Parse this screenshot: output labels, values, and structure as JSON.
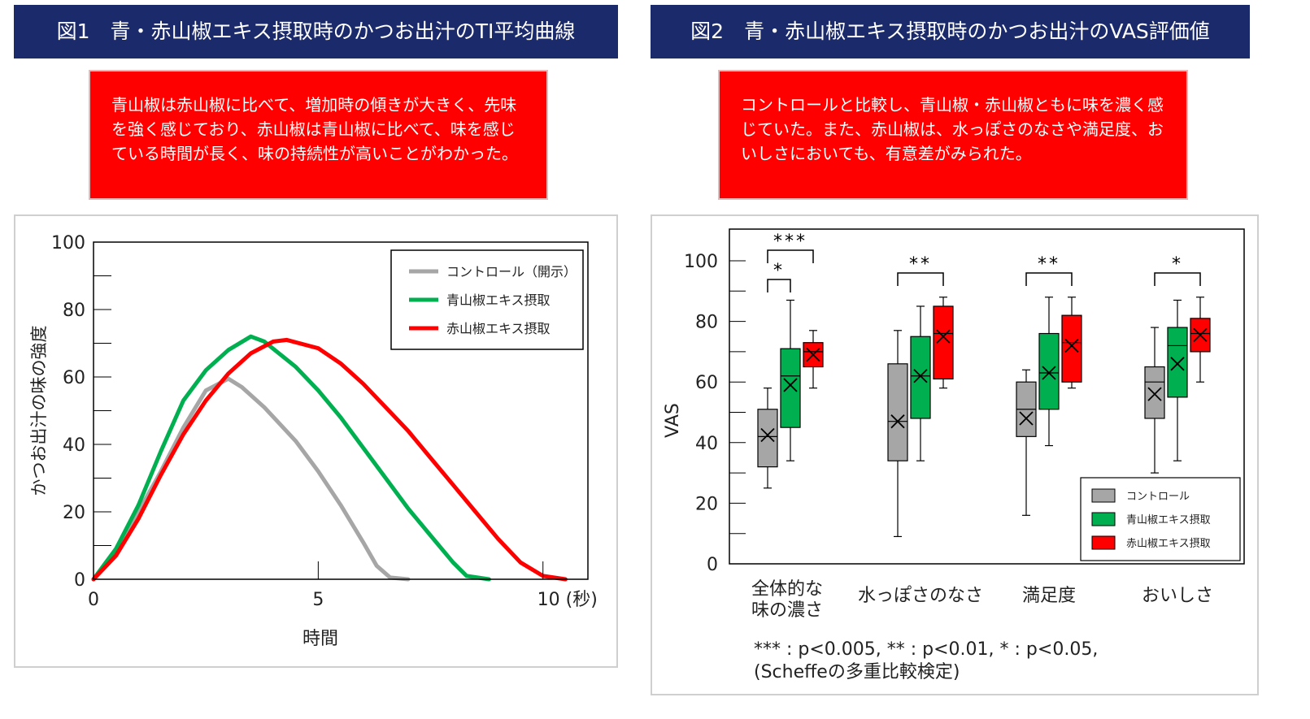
{
  "figure1": {
    "title": "図1　青・赤山椒エキス摂取時のかつお出汁のTI平均曲線",
    "callout": "青山椒は赤山椒に比べて、増加時の傾きが大きく、先味を強く感じており、赤山椒は青山椒に比べて、味を感じている時間が長く、味の持続性が高いことがわかった。"
  },
  "figure2": {
    "title": "図2　青・赤山椒エキス摂取時のかつお出汁のVAS評価値",
    "callout": "コントロールと比較し、青山椒・赤山椒ともに味を濃く感じていた。また、赤山椒は、水っぽさのなさや満足度、おいしさにおいても、有意差がみられた。",
    "footnote_line1": "*** : p<0.005,  ** : p<0.01,  * : p<0.05,",
    "footnote_line2": "(Scheffeの多重比較検定)"
  },
  "colors": {
    "gray": "#a6a6a6",
    "green": "#00b050",
    "red": "#ff0000",
    "navy": "#1b2a6b"
  },
  "chart_data": [
    {
      "type": "line",
      "title": "",
      "xlabel": "時間",
      "ylabel": "かつお出汁の味の強度",
      "xlim": [
        0,
        11
      ],
      "ylim": [
        0,
        100
      ],
      "x_ticks": [
        0,
        5,
        10
      ],
      "x_tick_labels": [
        "0",
        "5",
        "10 (秒)"
      ],
      "y_ticks": [
        0,
        20,
        40,
        60,
        80,
        100
      ],
      "legend_position": "top-right",
      "series": [
        {
          "name": "コントロール（開示）",
          "color": "#a6a6a6",
          "x": [
            0,
            0.5,
            1,
            1.5,
            2,
            2.5,
            3,
            3.3,
            3.8,
            4.5,
            5,
            5.5,
            6,
            6.3,
            6.6,
            7.0
          ],
          "y": [
            0,
            9,
            20,
            32,
            45,
            56,
            59.5,
            57,
            51,
            41,
            32,
            22,
            11,
            4,
            0.5,
            0
          ]
        },
        {
          "name": "青山椒エキス摂取",
          "color": "#00b050",
          "x": [
            0,
            0.5,
            1,
            1.5,
            2,
            2.5,
            3,
            3.5,
            3.8,
            4.5,
            5,
            5.5,
            6,
            6.5,
            7,
            7.5,
            8,
            8.3,
            8.8
          ],
          "y": [
            0,
            9,
            22,
            38,
            53,
            62,
            68,
            72,
            70.5,
            63,
            56,
            48,
            39,
            30,
            21,
            13,
            5,
            1,
            0
          ]
        },
        {
          "name": "赤山椒エキス摂取",
          "color": "#ff0000",
          "x": [
            0,
            0.5,
            1,
            1.5,
            2,
            2.5,
            3,
            3.5,
            4,
            4.3,
            5,
            5.5,
            6,
            6.5,
            7,
            7.5,
            8,
            8.5,
            9,
            9.5,
            10,
            10.5
          ],
          "y": [
            0,
            7,
            18,
            31,
            43,
            53,
            61,
            67,
            70.5,
            71,
            68.5,
            64,
            58,
            51,
            44,
            36,
            28,
            20,
            12,
            5,
            1,
            0
          ]
        }
      ]
    },
    {
      "type": "box",
      "title": "",
      "ylabel": "VAS",
      "ylim": [
        0,
        100
      ],
      "y_ticks": [
        0,
        20,
        40,
        60,
        80,
        100
      ],
      "categories": [
        "全体的な味の濃さ",
        "水っぽさのなさ",
        "満足度",
        "おいしさ"
      ],
      "category_lines": [
        [
          "全体的な",
          "味の濃さ"
        ],
        [
          "水っぽさのなさ"
        ],
        [
          "満足度"
        ],
        [
          "おいしさ"
        ]
      ],
      "legend_position": "bottom-right",
      "series": [
        {
          "name": "コントロール",
          "color": "#a6a6a6",
          "boxes": [
            {
              "min": 25,
              "q1": 32,
              "median": 42,
              "q3": 51,
              "max": 58,
              "mean": 42.5
            },
            {
              "min": 9,
              "q1": 34,
              "median": 47,
              "q3": 66,
              "max": 77,
              "mean": 47
            },
            {
              "min": 16,
              "q1": 42,
              "median": 51,
              "q3": 60,
              "max": 64,
              "mean": 48
            },
            {
              "min": 30,
              "q1": 48,
              "median": 60,
              "q3": 65,
              "max": 78,
              "mean": 56
            }
          ]
        },
        {
          "name": "青山椒エキス摂取",
          "color": "#00b050",
          "boxes": [
            {
              "min": 34,
              "q1": 45,
              "median": 62,
              "q3": 71,
              "max": 87,
              "mean": 59
            },
            {
              "min": 34,
              "q1": 48,
              "median": 62,
              "q3": 75,
              "max": 85,
              "mean": 62
            },
            {
              "min": 39,
              "q1": 51,
              "median": 63,
              "q3": 76,
              "max": 88,
              "mean": 63
            },
            {
              "min": 34,
              "q1": 55,
              "median": 72,
              "q3": 78,
              "max": 87,
              "mean": 66
            }
          ]
        },
        {
          "name": "赤山椒エキス摂取",
          "color": "#ff0000",
          "boxes": [
            {
              "min": 58,
              "q1": 65,
              "median": 70,
              "q3": 73,
              "max": 77,
              "mean": 69
            },
            {
              "min": 58,
              "q1": 61,
              "median": 76,
              "q3": 85,
              "max": 88,
              "mean": 75
            },
            {
              "min": 58,
              "q1": 60,
              "median": 73,
              "q3": 82,
              "max": 88,
              "mean": 72
            },
            {
              "min": 60,
              "q1": 70,
              "median": 76,
              "q3": 81,
              "max": 88,
              "mean": 75.5
            }
          ]
        }
      ],
      "significance": [
        {
          "category": 0,
          "from_series": 0,
          "to_series": 1,
          "label": "*",
          "level": 0
        },
        {
          "category": 0,
          "from_series": 0,
          "to_series": 2,
          "label": "***",
          "level": 1
        },
        {
          "category": 1,
          "from_series": 0,
          "to_series": 2,
          "label": "**",
          "level": 0
        },
        {
          "category": 2,
          "from_series": 0,
          "to_series": 2,
          "label": "**",
          "level": 0
        },
        {
          "category": 3,
          "from_series": 0,
          "to_series": 2,
          "label": "*",
          "level": 0
        }
      ]
    }
  ]
}
